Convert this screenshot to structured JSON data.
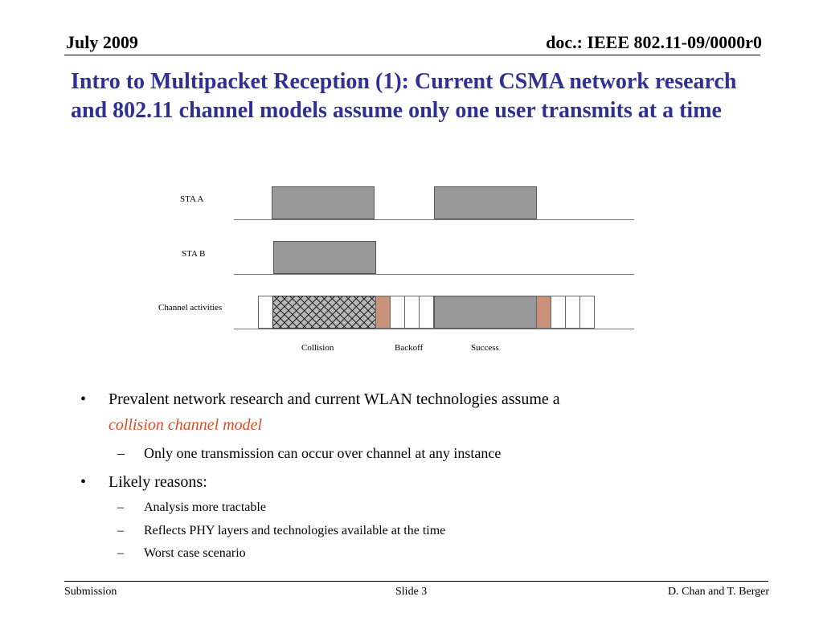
{
  "header": {
    "date": "July 2009",
    "doc_id": "doc.: IEEE 802.11-09/0000r0"
  },
  "title": "Intro to Multipacket Reception (1): Current CSMA network research and 802.11 channel models assume only one user transmits at a time",
  "diagram": {
    "lanes": {
      "sta_a": "STA A",
      "sta_b": "STA B",
      "channel": "Channel activities"
    },
    "legend": {
      "collision": "Collision",
      "backoff": "Backoff",
      "success": "Success"
    },
    "colors": {
      "transmission": "#999999",
      "backoff_slot": "#c9917a",
      "idle_slot": "#ffffff"
    }
  },
  "bullets": {
    "b1_text": "Prevalent network research and current WLAN technologies assume a",
    "b1_emph": "collision channel model",
    "b1_sub1": "Only one transmission can occur over channel at any instance",
    "b2_text": "Likely reasons:",
    "b2_sub1": "Analysis more tractable",
    "b2_sub2": "Reflects PHY layers and technologies available at the time",
    "b2_sub3": "Worst case scenario",
    "bullet_glyph": "•",
    "dash_glyph": "–"
  },
  "footer": {
    "left": "Submission",
    "center": "Slide 3",
    "right": "D. Chan and T. Berger"
  }
}
